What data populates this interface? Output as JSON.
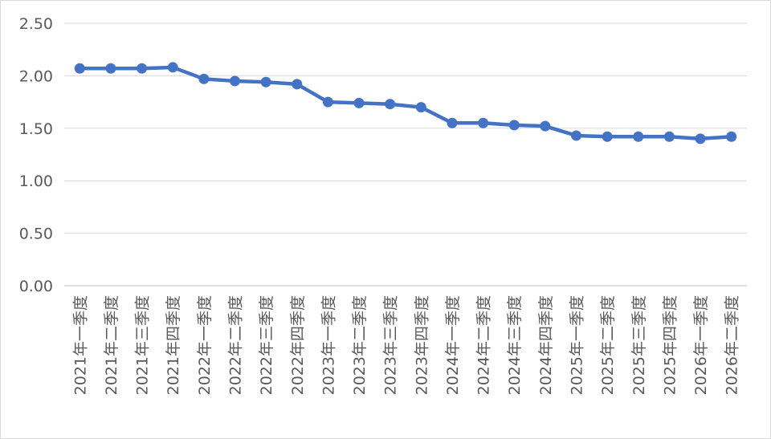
{
  "chart_data": {
    "type": "line",
    "title": "",
    "xlabel": "",
    "ylabel": "",
    "ylim": [
      0,
      2.5
    ],
    "yticks": [
      "0.00",
      "0.50",
      "1.00",
      "1.50",
      "2.00",
      "2.50"
    ],
    "grid": true,
    "legend": "none",
    "series_color": "#4472c4",
    "categories": [
      "2021年一季度",
      "2021年二季度",
      "2021年三季度",
      "2021年四季度",
      "2022年一季度",
      "2022年二季度",
      "2022年三季度",
      "2022年四季度",
      "2023年一季度",
      "2023年二季度",
      "2023年三季度",
      "2023年四季度",
      "2024年一季度",
      "2024年二季度",
      "2024年三季度",
      "2024年四季度",
      "2025年一季度",
      "2025年二季度",
      "2025年三季度",
      "2025年四季度",
      "2026年一季度",
      "2026年二季度"
    ],
    "series": [
      {
        "values": [
          2.07,
          2.07,
          2.07,
          2.08,
          1.97,
          1.95,
          1.94,
          1.92,
          1.75,
          1.74,
          1.73,
          1.7,
          1.55,
          1.55,
          1.53,
          1.52,
          1.43,
          1.42,
          1.42,
          1.42,
          1.4,
          1.42
        ]
      }
    ]
  }
}
